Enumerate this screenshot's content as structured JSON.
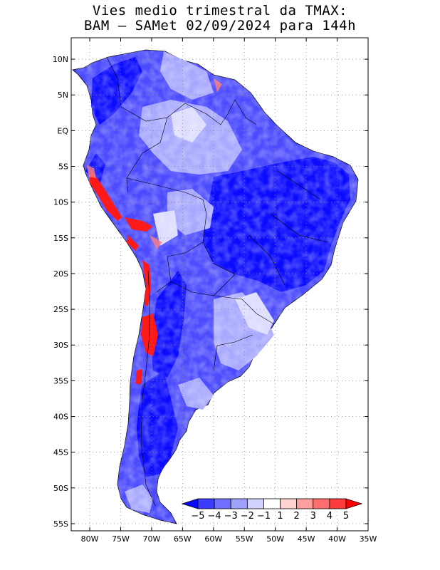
{
  "title": {
    "line1": "Vies medio trimestral da TMAX:",
    "line2": "BAM – SAMet 02/09/2024  para 144h"
  },
  "map": {
    "lon_range": [
      -83,
      -35
    ],
    "lat_range": [
      -56,
      13
    ],
    "lon_ticks": [
      {
        "value": -80,
        "label": "80W"
      },
      {
        "value": -75,
        "label": "75W"
      },
      {
        "value": -70,
        "label": "70W"
      },
      {
        "value": -65,
        "label": "65W"
      },
      {
        "value": -60,
        "label": "60W"
      },
      {
        "value": -55,
        "label": "55W"
      },
      {
        "value": -50,
        "label": "50W"
      },
      {
        "value": -45,
        "label": "45W"
      },
      {
        "value": -40,
        "label": "40W"
      },
      {
        "value": -35,
        "label": "35W"
      }
    ],
    "lat_ticks": [
      {
        "value": 10,
        "label": "10N"
      },
      {
        "value": 5,
        "label": "5N"
      },
      {
        "value": 0,
        "label": "EQ"
      },
      {
        "value": -5,
        "label": "5S"
      },
      {
        "value": -10,
        "label": "10S"
      },
      {
        "value": -15,
        "label": "15S"
      },
      {
        "value": -20,
        "label": "20S"
      },
      {
        "value": -25,
        "label": "25S"
      },
      {
        "value": -30,
        "label": "30S"
      },
      {
        "value": -35,
        "label": "35S"
      },
      {
        "value": -40,
        "label": "40S"
      },
      {
        "value": -45,
        "label": "45S"
      },
      {
        "value": -50,
        "label": "50S"
      },
      {
        "value": -55,
        "label": "55S"
      }
    ],
    "grid": "dotted"
  },
  "colorbar": {
    "labels": [
      "−5",
      "−4",
      "−3",
      "−2",
      "−1",
      "1",
      "2",
      "3",
      "4",
      "5"
    ],
    "colors": [
      "#0a0aff",
      "#3c3cff",
      "#6e6eff",
      "#a0a0ff",
      "#d2d2ff",
      "#ffffff",
      "#ffd2d2",
      "#ffa0a0",
      "#ff6e6e",
      "#ff3c3c",
      "#ff0000"
    ]
  }
}
